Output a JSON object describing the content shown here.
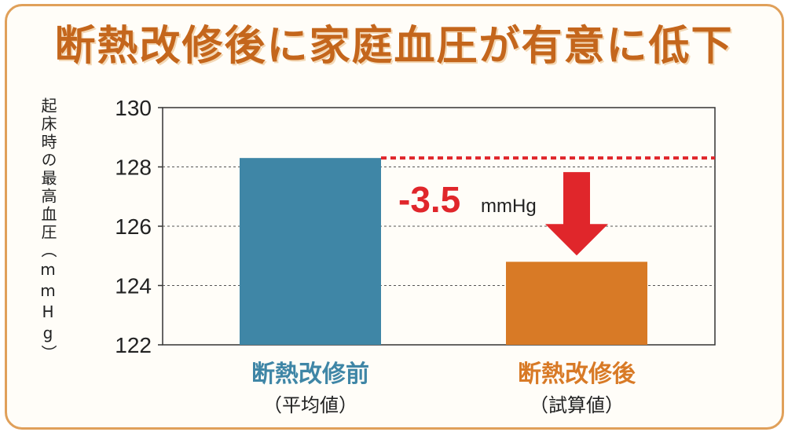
{
  "title": "断熱改修後に家庭血圧が有意に低下",
  "colors": {
    "accent": "#c4661c",
    "before": "#3f86a6",
    "after": "#d87a26",
    "reference": "#e0262b",
    "border": "#e0a05a"
  },
  "chart_data": {
    "type": "bar",
    "title": "断熱改修後に家庭血圧が有意に低下",
    "ylabel": "起床時の最高血圧（mmHg）",
    "xlabel": "",
    "ylim": [
      122,
      130
    ],
    "yticks": [
      122,
      124,
      126,
      128,
      130
    ],
    "grid": true,
    "categories": [
      "断熱改修前",
      "断熱改修後"
    ],
    "category_subtitles": [
      "（平均値）",
      "（試算値）"
    ],
    "values": [
      128.3,
      124.8
    ],
    "annotation": {
      "value": "-3.5",
      "unit": "mmHg"
    }
  }
}
